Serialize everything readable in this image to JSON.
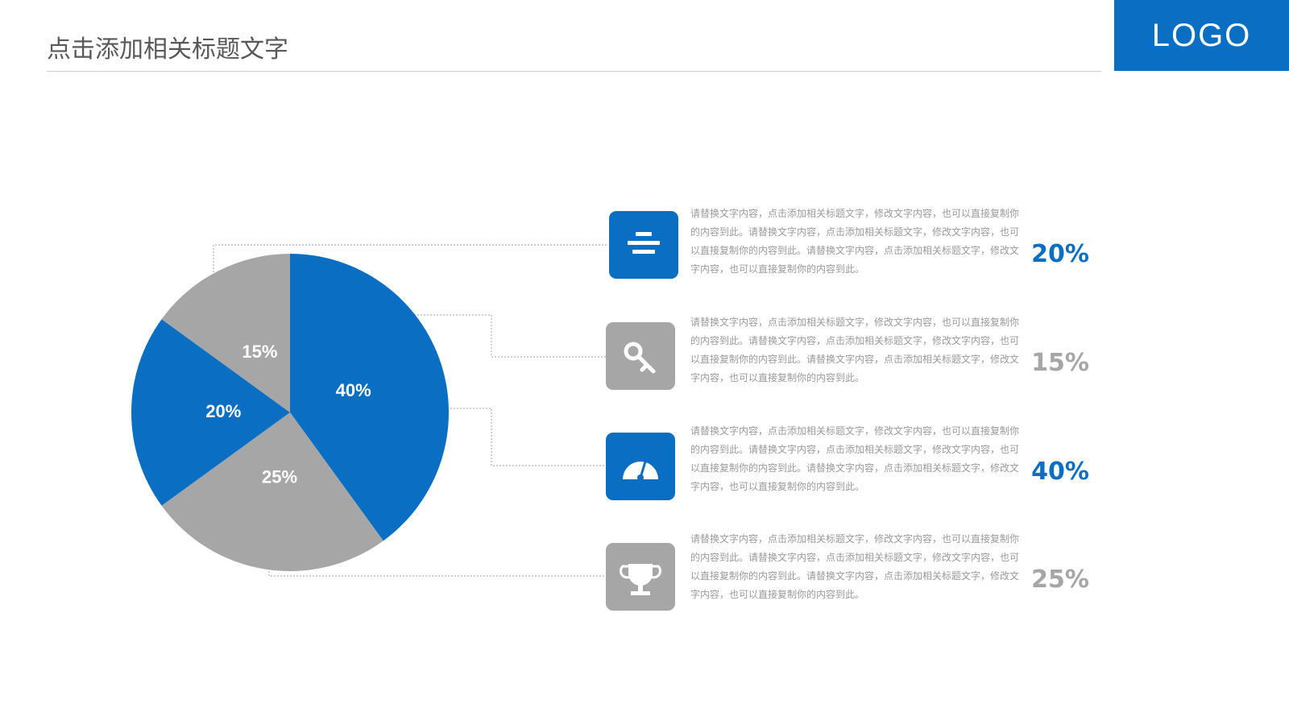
{
  "header": {
    "title": "点击添加相关标题文字",
    "logo": "LOGO"
  },
  "chart_data": {
    "type": "pie",
    "values": [
      40,
      25,
      20,
      15
    ],
    "value_labels": [
      "40%",
      "25%",
      "20%",
      "15%"
    ],
    "colors": [
      "#0a6fc2",
      "#a6a6a6",
      "#0a6fc2",
      "#a6a6a6"
    ]
  },
  "items": [
    {
      "text": "请替换文字内容，点击添加相关标题文字，修改文字内容，也可以直接复制你的内容到此。请替换文字内容，点击添加相关标题文字，修改文字内容，也可以直接复制你的内容到此。请替换文字内容，点击添加相关标题文字，修改文字内容，也可以直接复制你的内容到此。",
      "value": "20%",
      "color": "#0a6fc2"
    },
    {
      "text": "请替换文字内容，点击添加相关标题文字，修改文字内容，也可以直接复制你的内容到此。请替换文字内容，点击添加相关标题文字，修改文字内容，也可以直接复制你的内容到此。请替换文字内容，点击添加相关标题文字，修改文字内容，也可以直接复制你的内容到此。",
      "value": "15%",
      "color": "#a6a6a6"
    },
    {
      "text": "请替换文字内容，点击添加相关标题文字，修改文字内容，也可以直接复制你的内容到此。请替换文字内容，点击添加相关标题文字，修改文字内容，也可以直接复制你的内容到此。请替换文字内容，点击添加相关标题文字，修改文字内容，也可以直接复制你的内容到此。",
      "value": "40%",
      "color": "#0a6fc2"
    },
    {
      "text": "请替换文字内容，点击添加相关标题文字，修改文字内容，也可以直接复制你的内容到此。请替换文字内容，点击添加相关标题文字，修改文字内容，也可以直接复制你的内容到此。请替换文字内容，点击添加相关标题文字，修改文字内容，也可以直接复制你的内容到此。",
      "value": "25%",
      "color": "#a6a6a6"
    }
  ]
}
